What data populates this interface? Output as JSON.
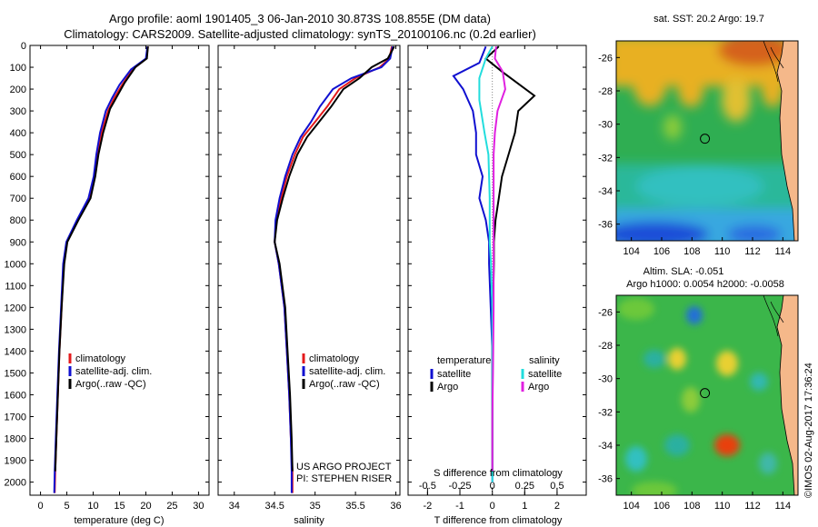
{
  "header": {
    "line1": "Argo profile: aoml 1901405_3 06-Jan-2010 30.873S 108.855E (DM data)",
    "line2": "Climatology: CARS2009. Satellite-adjusted climatology: synTS_20100106.nc (0.2d earlier)"
  },
  "colors": {
    "climatology": "#e41a1c",
    "satellite": "#1010d0",
    "argo": "#000000",
    "salinity_satellite": "#22dddd",
    "salinity_argo": "#e020e0"
  },
  "depth_axis": {
    "ticks": [
      0,
      100,
      200,
      300,
      400,
      500,
      600,
      700,
      800,
      900,
      1000,
      1100,
      1200,
      1300,
      1400,
      1500,
      1600,
      1700,
      1800,
      1900,
      2000
    ],
    "range": [
      0,
      2060
    ]
  },
  "chart_data": [
    {
      "type": "line",
      "name_key": "temperature",
      "xlabel": "temperature (deg C)",
      "xlim": [
        -2,
        32
      ],
      "xticks": [
        0,
        5,
        10,
        15,
        20,
        25,
        30
      ],
      "legend": {
        "items": [
          "climatology",
          "satellite-adj. clim.",
          "Argo(..raw -QC)"
        ],
        "placement": "bottom-center"
      },
      "series": [
        {
          "name": "climatology",
          "color_key": "climatology",
          "points": [
            [
              20.4,
              5
            ],
            [
              20.1,
              60
            ],
            [
              17.5,
              110
            ],
            [
              15.5,
              180
            ],
            [
              14.0,
              240
            ],
            [
              12.8,
              300
            ],
            [
              11.6,
              400
            ],
            [
              10.8,
              500
            ],
            [
              10.3,
              600
            ],
            [
              9.3,
              700
            ],
            [
              7.0,
              800
            ],
            [
              5.0,
              900
            ],
            [
              4.4,
              1000
            ],
            [
              4.0,
              1200
            ],
            [
              3.6,
              1400
            ],
            [
              3.3,
              1600
            ],
            [
              3.0,
              1800
            ],
            [
              2.8,
              1950
            ],
            [
              2.7,
              2050
            ]
          ]
        },
        {
          "name": "satellite-adj. clim.",
          "color_key": "satellite",
          "points": [
            [
              20.3,
              5
            ],
            [
              20.0,
              60
            ],
            [
              17.2,
              110
            ],
            [
              15.0,
              180
            ],
            [
              13.6,
              240
            ],
            [
              12.4,
              300
            ],
            [
              11.3,
              400
            ],
            [
              10.6,
              500
            ],
            [
              10.1,
              600
            ],
            [
              9.1,
              700
            ],
            [
              6.9,
              800
            ],
            [
              4.9,
              900
            ],
            [
              4.3,
              1000
            ],
            [
              3.9,
              1200
            ],
            [
              3.5,
              1400
            ],
            [
              3.2,
              1600
            ],
            [
              2.9,
              1800
            ],
            [
              2.7,
              1950
            ],
            [
              2.6,
              2050
            ]
          ]
        },
        {
          "name": "Argo(..raw -QC)",
          "color_key": "argo",
          "points": [
            [
              20.4,
              5
            ],
            [
              20.2,
              60
            ],
            [
              18.0,
              100
            ],
            [
              16.0,
              170
            ],
            [
              14.6,
              230
            ],
            [
              13.2,
              290
            ],
            [
              11.9,
              400
            ],
            [
              11.0,
              500
            ],
            [
              10.4,
              600
            ],
            [
              9.5,
              700
            ],
            [
              7.2,
              800
            ],
            [
              5.1,
              900
            ],
            [
              4.5,
              1000
            ],
            [
              4.0,
              1200
            ],
            [
              3.6,
              1400
            ],
            [
              3.3,
              1600
            ],
            [
              3.0,
              1800
            ],
            [
              2.8,
              1950
            ]
          ]
        }
      ]
    },
    {
      "type": "line",
      "name_key": "salinity",
      "xlabel": "salinity",
      "xlim": [
        33.8,
        36.05
      ],
      "xticks": [
        34,
        34.5,
        35,
        35.5,
        36
      ],
      "xtick_labels": [
        "34",
        "34.5",
        "35",
        "35.5",
        "36"
      ],
      "legend": {
        "items": [
          "climatology",
          "satellite-adj. clim.",
          "Argo(..raw -QC)"
        ],
        "placement": "bottom-center"
      },
      "footer": [
        "US ARGO PROJECT",
        "PI: STEPHEN RISER"
      ],
      "series": [
        {
          "name": "climatology",
          "color_key": "climatology",
          "points": [
            [
              35.95,
              5
            ],
            [
              35.92,
              60
            ],
            [
              35.8,
              100
            ],
            [
              35.5,
              150
            ],
            [
              35.3,
              200
            ],
            [
              35.15,
              280
            ],
            [
              35.0,
              350
            ],
            [
              34.85,
              420
            ],
            [
              34.75,
              500
            ],
            [
              34.65,
              600
            ],
            [
              34.58,
              700
            ],
            [
              34.52,
              800
            ],
            [
              34.5,
              900
            ],
            [
              34.55,
              1000
            ],
            [
              34.62,
              1200
            ],
            [
              34.65,
              1400
            ],
            [
              34.68,
              1600
            ],
            [
              34.7,
              1800
            ],
            [
              34.72,
              1950
            ],
            [
              34.72,
              2050
            ]
          ]
        },
        {
          "name": "satellite-adj. clim.",
          "color_key": "satellite",
          "points": [
            [
              35.96,
              5
            ],
            [
              35.93,
              60
            ],
            [
              35.82,
              100
            ],
            [
              35.45,
              150
            ],
            [
              35.22,
              200
            ],
            [
              35.06,
              280
            ],
            [
              34.95,
              350
            ],
            [
              34.82,
              420
            ],
            [
              34.72,
              500
            ],
            [
              34.63,
              600
            ],
            [
              34.56,
              700
            ],
            [
              34.51,
              800
            ],
            [
              34.5,
              900
            ],
            [
              34.55,
              1000
            ],
            [
              34.62,
              1200
            ],
            [
              34.65,
              1400
            ],
            [
              34.68,
              1600
            ],
            [
              34.7,
              1800
            ],
            [
              34.71,
              1950
            ],
            [
              34.71,
              2050
            ]
          ]
        },
        {
          "name": "Argo(..raw -QC)",
          "color_key": "argo",
          "points": [
            [
              35.98,
              5
            ],
            [
              35.9,
              60
            ],
            [
              35.7,
              100
            ],
            [
              35.55,
              150
            ],
            [
              35.35,
              200
            ],
            [
              35.2,
              280
            ],
            [
              35.05,
              350
            ],
            [
              34.9,
              420
            ],
            [
              34.78,
              500
            ],
            [
              34.68,
              600
            ],
            [
              34.6,
              700
            ],
            [
              34.53,
              800
            ],
            [
              34.5,
              900
            ],
            [
              34.56,
              1000
            ],
            [
              34.63,
              1200
            ],
            [
              34.66,
              1400
            ],
            [
              34.69,
              1600
            ],
            [
              34.71,
              1800
            ],
            [
              34.72,
              1950
            ]
          ]
        }
      ]
    },
    {
      "type": "line",
      "name_key": "difference",
      "xlabel": "T difference from climatology",
      "xlim": [
        -2.6,
        2.9
      ],
      "xticks": [
        -2,
        -1,
        0,
        1,
        2
      ],
      "top_label": "S difference from climatology",
      "top_ticks": [
        -0.5,
        -0.25,
        0,
        0.25,
        0.5
      ],
      "top_tick_labels": [
        "-0.5",
        "-0.25",
        "0",
        "0.25",
        "0.5"
      ],
      "legend": {
        "temperature_header": "temperature",
        "salinity_header": "salinity",
        "items": [
          "satellite",
          "Argo"
        ],
        "placement": "bottom-center"
      },
      "series": [
        {
          "name": "satellite",
          "group": "temperature",
          "color_key": "satellite",
          "points": [
            [
              -0.2,
              5
            ],
            [
              -0.4,
              80
            ],
            [
              -1.2,
              140
            ],
            [
              -0.9,
              200
            ],
            [
              -0.6,
              300
            ],
            [
              -0.5,
              400
            ],
            [
              -0.5,
              500
            ],
            [
              -0.3,
              600
            ],
            [
              -0.4,
              700
            ],
            [
              -0.2,
              800
            ],
            [
              -0.1,
              900
            ],
            [
              -0.1,
              1000
            ],
            [
              -0.05,
              1200
            ],
            [
              0,
              1400
            ],
            [
              0,
              1700
            ],
            [
              0,
              2000
            ]
          ]
        },
        {
          "name": "Argo",
          "group": "temperature",
          "color_key": "argo",
          "points": [
            [
              0.2,
              5
            ],
            [
              -0.2,
              60
            ],
            [
              0.3,
              120
            ],
            [
              1.3,
              230
            ],
            [
              0.8,
              300
            ],
            [
              0.7,
              400
            ],
            [
              0.5,
              500
            ],
            [
              0.3,
              600
            ],
            [
              0.2,
              700
            ],
            [
              0.1,
              800
            ],
            [
              0.05,
              900
            ],
            [
              0.05,
              1000
            ],
            [
              0.02,
              1200
            ],
            [
              0,
              1400
            ],
            [
              0,
              1700
            ],
            [
              0,
              1950
            ]
          ]
        },
        {
          "name": "satellite",
          "group": "salinity",
          "color_key": "salinity_satellite",
          "points": [
            [
              0,
              5
            ],
            [
              -0.05,
              60
            ],
            [
              -0.1,
              150
            ],
            [
              -0.1,
              250
            ],
            [
              -0.06,
              400
            ],
            [
              -0.03,
              500
            ],
            [
              -0.02,
              700
            ],
            [
              -0.02,
              900
            ],
            [
              -0.01,
              1000
            ],
            [
              0,
              1200
            ],
            [
              0,
              1500
            ],
            [
              0,
              2000
            ]
          ]
        },
        {
          "name": "Argo",
          "group": "salinity",
          "color_key": "salinity_argo",
          "points": [
            [
              0.03,
              5
            ],
            [
              0.02,
              60
            ],
            [
              0.08,
              120
            ],
            [
              0.1,
              200
            ],
            [
              0.04,
              300
            ],
            [
              0.02,
              400
            ],
            [
              0.01,
              500
            ],
            [
              0.01,
              700
            ],
            [
              0.01,
              900
            ],
            [
              0.01,
              1000
            ],
            [
              0.01,
              1200
            ],
            [
              0.005,
              1500
            ],
            [
              0,
              1700
            ],
            [
              0,
              1950
            ]
          ]
        }
      ]
    },
    {
      "type": "heatmap",
      "name_key": "sst_map",
      "title": "sat. SST: 20.2  Argo: 19.7",
      "xticks": [
        104,
        106,
        108,
        110,
        112,
        114
      ],
      "yticks": [
        -26,
        -28,
        -30,
        -32,
        -34,
        -36
      ],
      "xlim": [
        103,
        115
      ],
      "ylim": [
        -37,
        -25
      ],
      "marker": [
        108.855,
        -30.873
      ]
    },
    {
      "type": "heatmap",
      "name_key": "sla_map",
      "title": "Altim. SLA: -0.051",
      "subtitle": "Argo h1000: 0.0054 h2000: -0.0058",
      "xticks": [
        104,
        106,
        108,
        110,
        112,
        114
      ],
      "yticks": [
        -26,
        -28,
        -30,
        -32,
        -34,
        -36
      ],
      "xlim": [
        103,
        115
      ],
      "ylim": [
        -37,
        -25
      ],
      "marker": [
        108.855,
        -30.873
      ]
    }
  ],
  "footer_stamp": "©IMOS 02-Aug-2017 17:36:24"
}
